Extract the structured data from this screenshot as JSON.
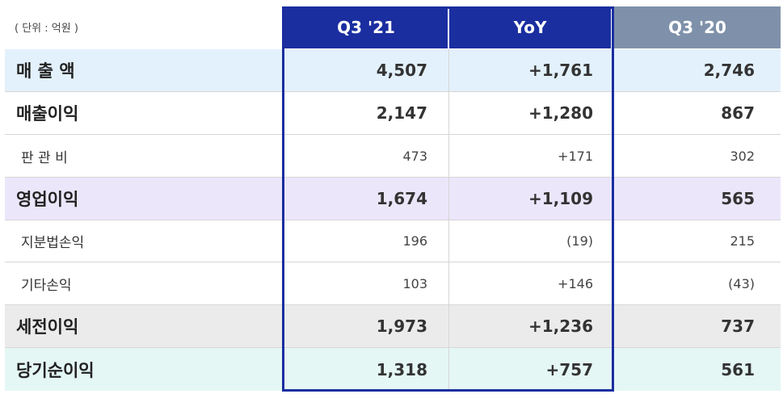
{
  "unit_label": "( 단위 : 억원 )",
  "headers": {
    "q3_21": "Q3 '21",
    "yoy": "YoY",
    "q3_20": "Q3 '20"
  },
  "colors": {
    "header_blue": "#1a2ea0",
    "header_gray": "#7f91aa"
  },
  "rows": [
    {
      "label": "매 출 액",
      "q3_21": "4,507",
      "yoy": "+1,761",
      "q3_20": "2,746"
    },
    {
      "label": "매출이익",
      "q3_21": "2,147",
      "yoy": "+1,280",
      "q3_20": "867"
    },
    {
      "label": "판 관 비",
      "q3_21": "473",
      "yoy": "+171",
      "q3_20": "302"
    },
    {
      "label": "영업이익",
      "q3_21": "1,674",
      "yoy": "+1,109",
      "q3_20": "565"
    },
    {
      "label": "지분법손익",
      "q3_21": "196",
      "yoy": "(19)",
      "q3_20": "215"
    },
    {
      "label": "기타손익",
      "q3_21": "103",
      "yoy": "+146",
      "q3_20": "(43)"
    },
    {
      "label": "세전이익",
      "q3_21": "1,973",
      "yoy": "+1,236",
      "q3_20": "737"
    },
    {
      "label": "당기순이익",
      "q3_21": "1,318",
      "yoy": "+757",
      "q3_20": "561"
    }
  ]
}
